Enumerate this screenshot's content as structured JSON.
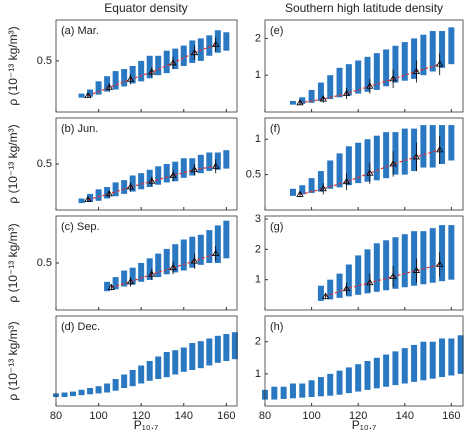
{
  "figure": {
    "column_titles": [
      "Equator density",
      "Southern high latitude density"
    ],
    "ylabel": "ρ (10⁻¹³ kg/m³)",
    "xlabel": "P₁₀.₇"
  },
  "chart_data": [
    {
      "type": "scatter",
      "title": "(a) Mar.",
      "xlim": [
        80,
        165
      ],
      "xticks": [
        80,
        100,
        120,
        140,
        160
      ],
      "ylim": [
        0,
        0.9
      ],
      "yticks": [
        0.5
      ],
      "streaks": {
        "color": "#2a78c2",
        "x": [
          92,
          96,
          100,
          104,
          108,
          112,
          116,
          120,
          124,
          128,
          132,
          136,
          140,
          144,
          148,
          152,
          156,
          160
        ],
        "low": [
          0.14,
          0.15,
          0.17,
          0.2,
          0.22,
          0.25,
          0.28,
          0.3,
          0.33,
          0.36,
          0.38,
          0.42,
          0.45,
          0.48,
          0.5,
          0.55,
          0.58,
          0.6
        ],
        "high": [
          0.18,
          0.22,
          0.3,
          0.35,
          0.4,
          0.42,
          0.45,
          0.5,
          0.55,
          0.55,
          0.6,
          0.62,
          0.65,
          0.7,
          0.72,
          0.75,
          0.8,
          0.78
        ]
      },
      "means": {
        "color": "#000000",
        "line_color": "#e03030",
        "x": [
          95,
          105,
          115,
          125,
          135,
          145,
          155
        ],
        "values": [
          0.16,
          0.24,
          0.32,
          0.39,
          0.48,
          0.58,
          0.66
        ],
        "errors": [
          0.02,
          0.04,
          0.05,
          0.05,
          0.06,
          0.07,
          0.07
        ]
      }
    },
    {
      "type": "scatter",
      "title": "(b) Jun.",
      "xlim": [
        80,
        165
      ],
      "xticks": [
        80,
        100,
        120,
        140,
        160
      ],
      "ylim": [
        0.1,
        0.9
      ],
      "yticks": [
        0.5
      ],
      "streaks": {
        "color": "#2a78c2",
        "x": [
          92,
          96,
          100,
          104,
          108,
          112,
          116,
          120,
          124,
          128,
          132,
          136,
          140,
          144,
          148,
          152,
          156,
          160
        ],
        "low": [
          0.16,
          0.17,
          0.18,
          0.2,
          0.22,
          0.24,
          0.26,
          0.28,
          0.3,
          0.32,
          0.34,
          0.35,
          0.38,
          0.4,
          0.42,
          0.44,
          0.45,
          0.46
        ],
        "high": [
          0.2,
          0.24,
          0.28,
          0.3,
          0.34,
          0.36,
          0.4,
          0.42,
          0.45,
          0.48,
          0.5,
          0.52,
          0.55,
          0.55,
          0.58,
          0.6,
          0.6,
          0.62
        ]
      },
      "means": {
        "color": "#000000",
        "line_color": "#e03030",
        "x": [
          95,
          105,
          115,
          125,
          135,
          145,
          155
        ],
        "values": [
          0.19,
          0.24,
          0.3,
          0.35,
          0.4,
          0.45,
          0.48
        ],
        "errors": [
          0.02,
          0.03,
          0.04,
          0.04,
          0.05,
          0.05,
          0.06
        ]
      }
    },
    {
      "type": "scatter",
      "title": "(c) Sep.",
      "xlim": [
        80,
        165
      ],
      "xticks": [
        80,
        100,
        120,
        140,
        160
      ],
      "ylim": [
        0,
        1.0
      ],
      "yticks": [
        0.5
      ],
      "streaks": {
        "color": "#2a78c2",
        "x": [
          104,
          108,
          112,
          116,
          120,
          124,
          128,
          132,
          136,
          140,
          144,
          148,
          152,
          156,
          160
        ],
        "low": [
          0.2,
          0.22,
          0.25,
          0.27,
          0.3,
          0.32,
          0.35,
          0.38,
          0.4,
          0.42,
          0.45,
          0.48,
          0.5,
          0.5,
          0.55
        ],
        "high": [
          0.3,
          0.35,
          0.42,
          0.45,
          0.5,
          0.55,
          0.6,
          0.65,
          0.7,
          0.75,
          0.78,
          0.8,
          0.85,
          0.9,
          0.95
        ]
      },
      "means": {
        "color": "#000000",
        "line_color": "#e03030",
        "x": [
          106,
          115,
          125,
          135,
          145,
          155
        ],
        "values": [
          0.24,
          0.3,
          0.38,
          0.45,
          0.52,
          0.6
        ],
        "errors": [
          0.03,
          0.05,
          0.06,
          0.07,
          0.08,
          0.08
        ]
      }
    },
    {
      "type": "scatter",
      "title": "(d) Dec.",
      "xlim": [
        80,
        165
      ],
      "xticks": [
        80,
        100,
        120,
        140,
        160
      ],
      "ylim": [
        0,
        1.0
      ],
      "streaks": {
        "color": "#2a78c2",
        "x": [
          80,
          84,
          88,
          92,
          96,
          100,
          104,
          108,
          112,
          116,
          120,
          124,
          128,
          132,
          136,
          140,
          144,
          148,
          152,
          156,
          160,
          164
        ],
        "low": [
          0.1,
          0.1,
          0.11,
          0.12,
          0.13,
          0.14,
          0.15,
          0.17,
          0.2,
          0.22,
          0.25,
          0.28,
          0.3,
          0.32,
          0.35,
          0.38,
          0.4,
          0.42,
          0.45,
          0.48,
          0.5,
          0.52
        ],
        "high": [
          0.14,
          0.15,
          0.16,
          0.18,
          0.2,
          0.22,
          0.25,
          0.3,
          0.35,
          0.4,
          0.45,
          0.5,
          0.55,
          0.6,
          0.62,
          0.65,
          0.7,
          0.72,
          0.75,
          0.78,
          0.8,
          0.82
        ]
      }
    },
    {
      "type": "scatter",
      "title": "(e)",
      "xlim": [
        80,
        165
      ],
      "xticks": [
        80,
        100,
        120,
        140,
        160
      ],
      "ylim": [
        0,
        2.5
      ],
      "yticks": [
        1,
        2
      ],
      "streaks": {
        "color": "#2a78c2",
        "x": [
          92,
          96,
          100,
          104,
          108,
          112,
          116,
          120,
          124,
          128,
          132,
          136,
          140,
          144,
          148,
          152,
          156,
          160
        ],
        "low": [
          0.2,
          0.22,
          0.25,
          0.3,
          0.35,
          0.4,
          0.45,
          0.5,
          0.55,
          0.6,
          0.7,
          0.8,
          0.85,
          0.9,
          1.0,
          1.1,
          1.2,
          1.3
        ],
        "high": [
          0.3,
          0.4,
          0.6,
          0.8,
          1.0,
          1.2,
          1.3,
          1.4,
          1.5,
          1.6,
          1.7,
          1.8,
          1.9,
          2.0,
          2.1,
          2.2,
          2.2,
          2.3
        ]
      },
      "means": {
        "color": "#000000",
        "line_color": "#e03030",
        "x": [
          95,
          105,
          115,
          125,
          135,
          145,
          155
        ],
        "values": [
          0.25,
          0.35,
          0.5,
          0.7,
          0.9,
          1.1,
          1.3
        ],
        "errors": [
          0.05,
          0.1,
          0.15,
          0.2,
          0.25,
          0.3,
          0.3
        ]
      }
    },
    {
      "type": "scatter",
      "title": "(f)",
      "xlim": [
        80,
        165
      ],
      "xticks": [
        80,
        100,
        120,
        140,
        160
      ],
      "ylim": [
        0,
        1.3
      ],
      "yticks": [
        0.5,
        1
      ],
      "streaks": {
        "color": "#2a78c2",
        "x": [
          92,
          96,
          100,
          104,
          108,
          112,
          116,
          120,
          124,
          128,
          132,
          136,
          140,
          144,
          148,
          152,
          156,
          160
        ],
        "low": [
          0.2,
          0.22,
          0.24,
          0.26,
          0.3,
          0.32,
          0.35,
          0.38,
          0.4,
          0.42,
          0.45,
          0.5,
          0.5,
          0.55,
          0.6,
          0.6,
          0.65,
          0.7
        ],
        "high": [
          0.3,
          0.35,
          0.45,
          0.55,
          0.7,
          0.8,
          0.9,
          0.95,
          1.0,
          1.05,
          1.1,
          1.1,
          1.15,
          1.15,
          1.2,
          1.2,
          1.2,
          1.2
        ]
      },
      "means": {
        "color": "#000000",
        "line_color": "#e03030",
        "x": [
          95,
          105,
          115,
          125,
          135,
          145,
          155
        ],
        "values": [
          0.22,
          0.3,
          0.4,
          0.52,
          0.65,
          0.75,
          0.85
        ],
        "errors": [
          0.04,
          0.08,
          0.12,
          0.15,
          0.18,
          0.2,
          0.2
        ]
      }
    },
    {
      "type": "scatter",
      "title": "(g)",
      "xlim": [
        80,
        165
      ],
      "xticks": [
        80,
        100,
        120,
        140,
        160
      ],
      "ylim": [
        0,
        3.1
      ],
      "yticks": [
        1,
        2,
        3
      ],
      "streaks": {
        "color": "#2a78c2",
        "x": [
          104,
          108,
          112,
          116,
          120,
          124,
          128,
          132,
          136,
          140,
          144,
          148,
          152,
          156,
          160
        ],
        "low": [
          0.3,
          0.35,
          0.4,
          0.45,
          0.5,
          0.55,
          0.6,
          0.65,
          0.7,
          0.75,
          0.8,
          0.85,
          0.9,
          0.95,
          1.0
        ],
        "high": [
          0.8,
          1.0,
          1.2,
          1.5,
          1.8,
          2.0,
          2.2,
          2.3,
          2.4,
          2.5,
          2.6,
          2.6,
          2.7,
          2.8,
          2.8
        ]
      },
      "means": {
        "color": "#000000",
        "line_color": "#e03030",
        "x": [
          106,
          115,
          125,
          135,
          145,
          155
        ],
        "values": [
          0.45,
          0.7,
          0.9,
          1.1,
          1.3,
          1.5
        ],
        "errors": [
          0.1,
          0.2,
          0.3,
          0.35,
          0.4,
          0.4
        ]
      }
    },
    {
      "type": "scatter",
      "title": "(h)",
      "xlim": [
        80,
        165
      ],
      "xticks": [
        80,
        100,
        120,
        140,
        160
      ],
      "ylim": [
        0,
        2.8
      ],
      "yticks": [
        1,
        2
      ],
      "streaks": {
        "color": "#2a78c2",
        "x": [
          80,
          84,
          88,
          92,
          96,
          100,
          104,
          108,
          112,
          116,
          120,
          124,
          128,
          132,
          136,
          140,
          144,
          148,
          152,
          156,
          160,
          164
        ],
        "low": [
          0.2,
          0.2,
          0.22,
          0.24,
          0.26,
          0.28,
          0.3,
          0.32,
          0.35,
          0.4,
          0.45,
          0.5,
          0.55,
          0.6,
          0.65,
          0.7,
          0.75,
          0.8,
          0.85,
          0.9,
          0.95,
          1.0
        ],
        "high": [
          0.5,
          0.6,
          0.6,
          0.7,
          0.7,
          0.8,
          0.9,
          1.0,
          1.1,
          1.2,
          1.3,
          1.4,
          1.5,
          1.6,
          1.7,
          1.8,
          1.9,
          2.0,
          2.0,
          2.1,
          2.1,
          2.2
        ]
      }
    }
  ]
}
